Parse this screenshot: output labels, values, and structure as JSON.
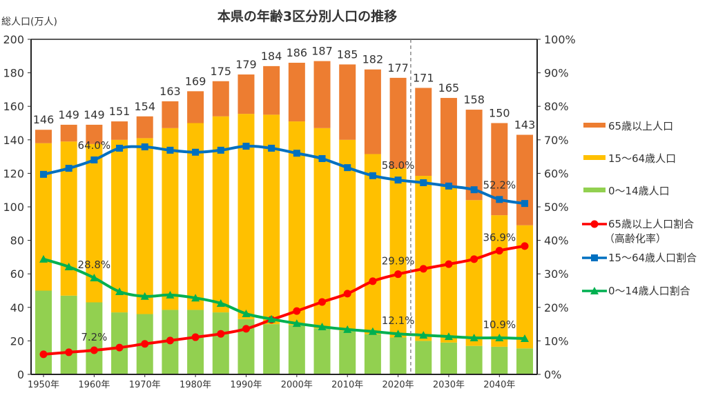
{
  "chart_data": {
    "type": "bar+line",
    "title": "本県の年齢3区分別人口の推移",
    "ylabel": "総人口(万人)",
    "ylim": [
      0,
      200
    ],
    "yticks": [
      "0",
      "20",
      "40",
      "60",
      "80",
      "100",
      "120",
      "140",
      "160",
      "180",
      "200"
    ],
    "y2lim": [
      0,
      100
    ],
    "y2ticks": [
      "0%",
      "10%",
      "20%",
      "30%",
      "40%",
      "50%",
      "60%",
      "70%",
      "80%",
      "90%",
      "100%"
    ],
    "xticks": [
      "1950年",
      "1960年",
      "1970年",
      "1980年",
      "1990年",
      "2000年",
      "2010年",
      "2020年",
      "2030年",
      "2040年"
    ],
    "years": [
      1950,
      1955,
      1960,
      1965,
      1970,
      1975,
      1980,
      1985,
      1990,
      1995,
      2000,
      2005,
      2010,
      2015,
      2020,
      2025,
      2030,
      2035,
      2040,
      2045
    ],
    "projection_divider_between": [
      2020,
      2025
    ],
    "totals": [
      146,
      149,
      149,
      151,
      154,
      163,
      169,
      175,
      179,
      184,
      186,
      187,
      185,
      182,
      177,
      171,
      165,
      158,
      150,
      143
    ],
    "bar_series": [
      {
        "name": "0～14歳人口",
        "color": "#92d050",
        "values": [
          50,
          47,
          43,
          37,
          36,
          38.5,
          38.5,
          37,
          33,
          30,
          29.5,
          27.5,
          26,
          24,
          22,
          20,
          19,
          17,
          16.5,
          15.5
        ]
      },
      {
        "name": "15～64歳人口",
        "color": "#ffc000",
        "values": [
          88,
          92,
          94.5,
          103,
          105,
          108.5,
          111.5,
          117,
          122.5,
          125,
          121.5,
          119.5,
          114,
          107.5,
          101,
          98.5,
          93,
          87,
          78.5,
          73.5
        ]
      },
      {
        "name": "65歳以上人口",
        "color": "#ed7d31",
        "values": [
          8,
          10,
          11.5,
          11,
          13,
          16,
          19,
          21,
          23.5,
          29,
          35,
          40,
          45,
          50.5,
          54,
          52.5,
          53,
          54,
          55,
          54
        ]
      }
    ],
    "line_series": [
      {
        "name": "65歳以上人口割合",
        "name2": "（高齢化率）",
        "color": "#ff0000",
        "marker": "circle",
        "values": [
          6.0,
          6.6,
          7.2,
          8.0,
          9.1,
          10.1,
          11.1,
          12.1,
          13.6,
          16.3,
          18.9,
          21.6,
          24.1,
          27.8,
          29.9,
          31.5,
          32.9,
          34.4,
          36.9,
          38.3
        ],
        "labels": [
          {
            "year": 1960,
            "text": "7.2%"
          },
          {
            "year": 2020,
            "text": "29.9%"
          },
          {
            "year": 2040,
            "text": "36.9%"
          }
        ]
      },
      {
        "name": "15～64歳人口割合",
        "color": "#0070c0",
        "marker": "square",
        "values": [
          59.7,
          61.5,
          64.0,
          67.5,
          67.9,
          66.9,
          66.3,
          66.9,
          68.1,
          67.5,
          66.0,
          64.4,
          61.7,
          59.3,
          58.0,
          57.2,
          56.2,
          55.1,
          52.2,
          51.0
        ],
        "labels": [
          {
            "year": 1960,
            "text": "64.0%"
          },
          {
            "year": 2020,
            "text": "58.0%"
          },
          {
            "year": 2040,
            "text": "52.2%"
          }
        ]
      },
      {
        "name": "0～14歳人口割合",
        "color": "#00b050",
        "marker": "triangle",
        "values": [
          34.4,
          32.1,
          28.8,
          24.7,
          23.3,
          23.7,
          22.8,
          21.2,
          18.1,
          16.5,
          15.2,
          14.2,
          13.4,
          12.8,
          12.1,
          11.7,
          11.3,
          10.9,
          10.9,
          10.7
        ],
        "labels": [
          {
            "year": 1960,
            "text": "28.8%"
          },
          {
            "year": 2020,
            "text": "12.1%"
          },
          {
            "year": 2040,
            "text": "10.9%"
          }
        ]
      }
    ],
    "legend_placement": "right"
  }
}
